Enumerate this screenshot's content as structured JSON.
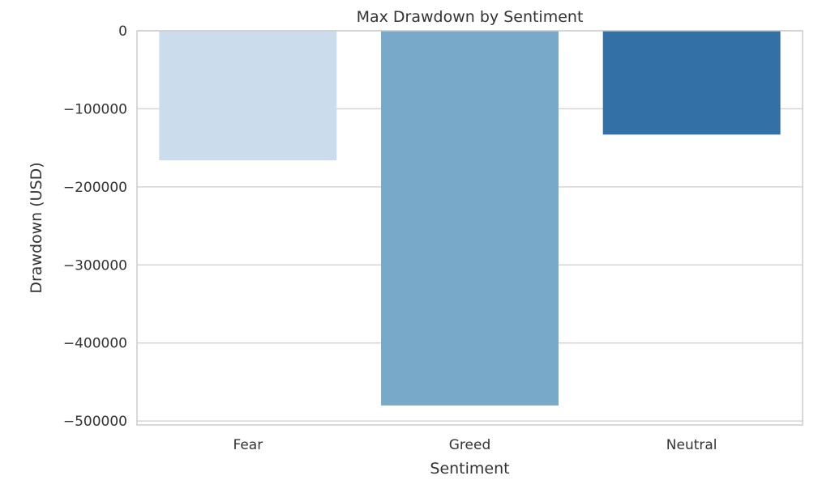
{
  "chart_data": {
    "type": "bar",
    "title": "Max Drawdown by Sentiment",
    "xlabel": "Sentiment",
    "ylabel": "Drawdown (USD)",
    "categories": [
      "Fear",
      "Greed",
      "Neutral"
    ],
    "values": [
      -166000,
      -480000,
      -133000
    ],
    "colors": [
      "#cbdcec",
      "#78a9c9",
      "#3370a5"
    ],
    "ylim": [
      -505000,
      0
    ],
    "yticks": [
      0,
      -100000,
      -200000,
      -300000,
      -400000,
      -500000
    ],
    "ytick_labels": [
      "0",
      "−100000",
      "−200000",
      "−300000",
      "−400000",
      "−500000"
    ],
    "grid": true,
    "grid_color": "#d5d5d5",
    "spine_color": "#cccccc",
    "legend": "none"
  }
}
